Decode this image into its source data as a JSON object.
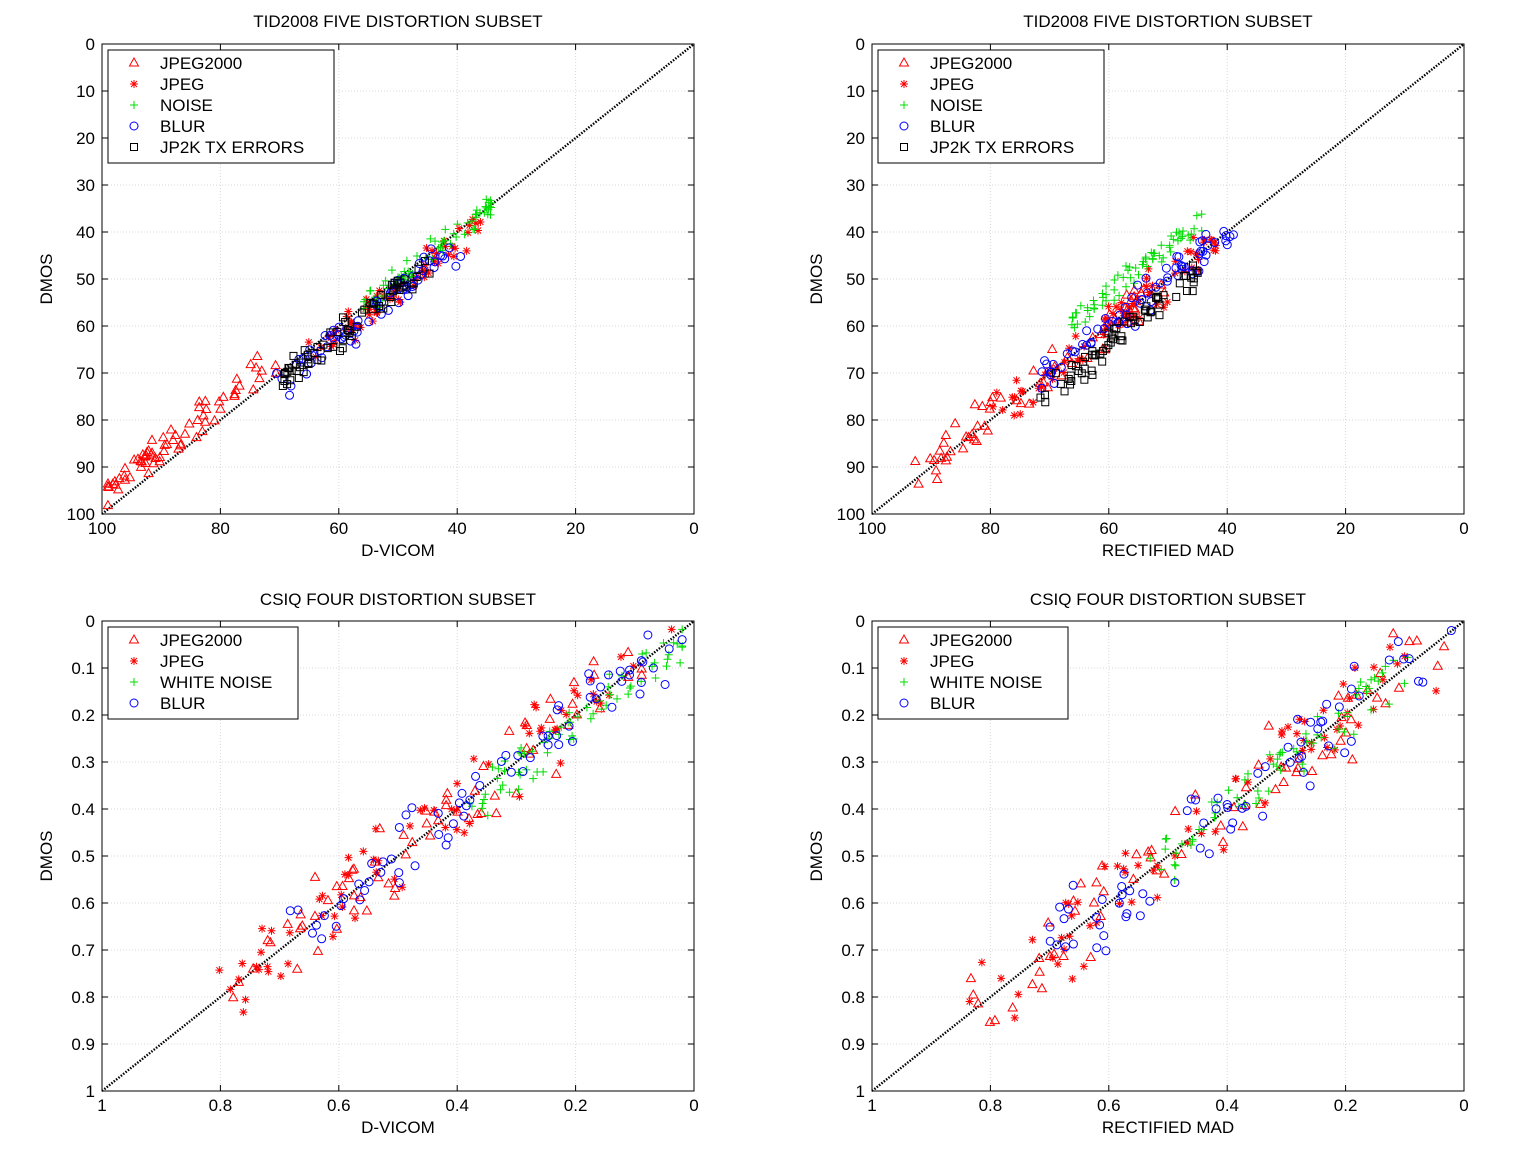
{
  "chart_data": [
    {
      "type": "scatter",
      "title": "TID2008 FIVE DISTORTION SUBSET",
      "xlabel": "D-VICOM",
      "ylabel": "DMOS",
      "xlim": [
        100,
        0
      ],
      "ylim": [
        0,
        100
      ],
      "xticks": [
        "100",
        "80",
        "60",
        "40",
        "20",
        "0"
      ],
      "yticks": [
        "0",
        "10",
        "20",
        "30",
        "40",
        "50",
        "60",
        "70",
        "80",
        "90",
        "100"
      ],
      "x_reversed": true,
      "y_reversed": true,
      "grid": true,
      "legend_position": "top-left",
      "reference_line": "dotted diagonal",
      "series": [
        {
          "name": "JPEG2000",
          "marker": "triangle",
          "color": "#ff0000",
          "cx": 86,
          "cy": 82,
          "spread": 14,
          "seed": 1
        },
        {
          "name": "JPEG",
          "marker": "asterisk",
          "color": "#ff0000",
          "cx": 50,
          "cy": 52,
          "spread": 14,
          "seed": 2
        },
        {
          "name": "NOISE",
          "marker": "plus",
          "color": "#00dd00",
          "cx": 45,
          "cy": 45,
          "spread": 11,
          "seed": 3
        },
        {
          "name": "BLUR",
          "marker": "circle",
          "color": "#0000ff",
          "cx": 55,
          "cy": 58,
          "spread": 15,
          "seed": 4
        },
        {
          "name": "JP2K TX ERRORS",
          "marker": "square",
          "color": "#000000",
          "cx": 58,
          "cy": 60,
          "spread": 13,
          "seed": 5
        }
      ],
      "approximate_points": true
    },
    {
      "type": "scatter",
      "title": "TID2008 FIVE DISTORTION SUBSET",
      "xlabel": "RECTIFIED MAD",
      "ylabel": "DMOS",
      "xlim": [
        100,
        0
      ],
      "ylim": [
        0,
        100
      ],
      "xticks": [
        "100",
        "80",
        "60",
        "40",
        "20",
        "0"
      ],
      "yticks": [
        "0",
        "10",
        "20",
        "30",
        "40",
        "50",
        "60",
        "70",
        "80",
        "90",
        "100"
      ],
      "x_reversed": true,
      "y_reversed": true,
      "grid": true,
      "legend_position": "top-left",
      "reference_line": "dotted diagonal",
      "series": [
        {
          "name": "JPEG2000",
          "marker": "triangle",
          "color": "#ff0000",
          "cx": 72,
          "cy": 72,
          "spread": 20,
          "seed": 6
        },
        {
          "name": "JPEG",
          "marker": "asterisk",
          "color": "#ff0000",
          "cx": 60,
          "cy": 60,
          "spread": 19,
          "seed": 7
        },
        {
          "name": "NOISE",
          "marker": "plus",
          "color": "#00dd00",
          "cx": 55,
          "cy": 48,
          "spread": 12,
          "seed": 8
        },
        {
          "name": "BLUR",
          "marker": "circle",
          "color": "#0000ff",
          "cx": 55,
          "cy": 55,
          "spread": 16,
          "seed": 9
        },
        {
          "name": "JP2K TX ERRORS",
          "marker": "square",
          "color": "#000000",
          "cx": 58,
          "cy": 62,
          "spread": 13,
          "seed": 10
        }
      ],
      "approximate_points": true
    },
    {
      "type": "scatter",
      "title": "CSIQ FOUR DISTORTION SUBSET",
      "xlabel": "D-VICOM",
      "ylabel": "DMOS",
      "xlim": [
        1,
        0
      ],
      "ylim": [
        0,
        1
      ],
      "xticks": [
        "1",
        "0.8",
        "0.6",
        "0.4",
        "0.2",
        "0"
      ],
      "yticks": [
        "0",
        "0.1",
        "0.2",
        "0.3",
        "0.4",
        "0.5",
        "0.6",
        "0.7",
        "0.8",
        "0.9",
        "1"
      ],
      "x_reversed": true,
      "y_reversed": true,
      "grid": true,
      "legend_position": "top-left",
      "reference_line": "dotted diagonal",
      "series": [
        {
          "name": "JPEG2000",
          "marker": "triangle",
          "color": "#ff0000",
          "cx": 0.45,
          "cy": 0.45,
          "spread": 0.35,
          "seed": 11
        },
        {
          "name": "JPEG",
          "marker": "asterisk",
          "color": "#ff0000",
          "cx": 0.45,
          "cy": 0.45,
          "spread": 0.38,
          "seed": 12
        },
        {
          "name": "WHITE NOISE",
          "marker": "plus",
          "color": "#00dd00",
          "cx": 0.2,
          "cy": 0.22,
          "spread": 0.18,
          "seed": 13
        },
        {
          "name": "BLUR",
          "marker": "circle",
          "color": "#0000ff",
          "cx": 0.35,
          "cy": 0.35,
          "spread": 0.32,
          "seed": 14
        }
      ],
      "approximate_points": true
    },
    {
      "type": "scatter",
      "title": "CSIQ FOUR DISTORTION SUBSET",
      "xlabel": "RECTIFIED MAD",
      "ylabel": "DMOS",
      "xlim": [
        1,
        0
      ],
      "ylim": [
        0,
        1
      ],
      "xticks": [
        "1",
        "0.8",
        "0.6",
        "0.4",
        "0.2",
        "0"
      ],
      "yticks": [
        "0",
        "0.1",
        "0.2",
        "0.3",
        "0.4",
        "0.5",
        "0.6",
        "0.7",
        "0.8",
        "0.9",
        "1"
      ],
      "x_reversed": true,
      "y_reversed": true,
      "grid": true,
      "legend_position": "top-left",
      "reference_line": "dotted diagonal",
      "series": [
        {
          "name": "JPEG2000",
          "marker": "triangle",
          "color": "#ff0000",
          "cx": 0.45,
          "cy": 0.45,
          "spread": 0.38,
          "seed": 15
        },
        {
          "name": "JPEG",
          "marker": "asterisk",
          "color": "#ff0000",
          "cx": 0.45,
          "cy": 0.45,
          "spread": 0.38,
          "seed": 16
        },
        {
          "name": "WHITE NOISE",
          "marker": "plus",
          "color": "#00dd00",
          "cx": 0.3,
          "cy": 0.3,
          "spread": 0.22,
          "seed": 17
        },
        {
          "name": "BLUR",
          "marker": "circle",
          "color": "#0000ff",
          "cx": 0.4,
          "cy": 0.4,
          "spread": 0.35,
          "seed": 18
        }
      ],
      "approximate_points": true
    }
  ]
}
